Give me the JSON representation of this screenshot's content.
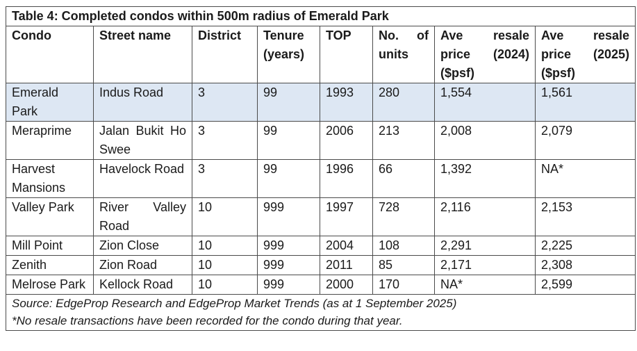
{
  "title": "Table 4: Completed condos within 500m radius of Emerald Park",
  "headers": {
    "condo": "Condo",
    "street": "Street name",
    "district": "District",
    "tenure_line1": "Tenure",
    "tenure_line2": "(years)",
    "top": "TOP",
    "units_w1": "No.",
    "units_w2": "of",
    "units_line2": "units",
    "p24_w1": "Ave",
    "p24_w2": "resale",
    "p24_w3": "price",
    "p24_w4": "(2024)",
    "p24_line3": "($psf)",
    "p25_w1": "Ave",
    "p25_w2": "resale",
    "p25_w3": "price",
    "p25_w4": "(2025)",
    "p25_line3": "($psf)"
  },
  "rows": [
    {
      "condo": "Emerald Park",
      "street": "Indus Road",
      "district": "3",
      "tenure": "99",
      "top": "1993",
      "units": "280",
      "p2024": "1,554",
      "p2025": "1,561"
    },
    {
      "condo": "Meraprime",
      "street": "Jalan Bukit Ho Swee",
      "district": "3",
      "tenure": "99",
      "top": "2006",
      "units": "213",
      "p2024": "2,008",
      "p2025": "2,079"
    },
    {
      "condo": "Harvest Mansions",
      "street": "Havelock Road",
      "district": "3",
      "tenure": "99",
      "top": "1996",
      "units": "66",
      "p2024": "1,392",
      "p2025": "NA*"
    },
    {
      "condo": "Valley Park",
      "street": "River Valley Road",
      "district": "10",
      "tenure": "999",
      "top": "1997",
      "units": "728",
      "p2024": "2,116",
      "p2025": "2,153"
    },
    {
      "condo": "Mill Point",
      "street": "Zion Close",
      "district": "10",
      "tenure": "999",
      "top": "2004",
      "units": "108",
      "p2024": "2,291",
      "p2025": "2,225"
    },
    {
      "condo": "Zenith",
      "street": "Zion Road",
      "district": "10",
      "tenure": "999",
      "top": "2011",
      "units": "85",
      "p2024": "2,171",
      "p2025": "2,308"
    },
    {
      "condo": "Melrose Park",
      "street": "Kellock Road",
      "district": "10",
      "tenure": "999",
      "top": "2000",
      "units": "170",
      "p2024": "NA*",
      "p2025": "2,599"
    }
  ],
  "footnotes": {
    "source": "Source: EdgeProp Research and EdgeProp Market Trends (as at 1 September 2025)",
    "note": "*No resale transactions have been recorded for the condo during that year."
  },
  "colors": {
    "highlight_row": "#dde7f3",
    "border": "#4a4a4a"
  }
}
